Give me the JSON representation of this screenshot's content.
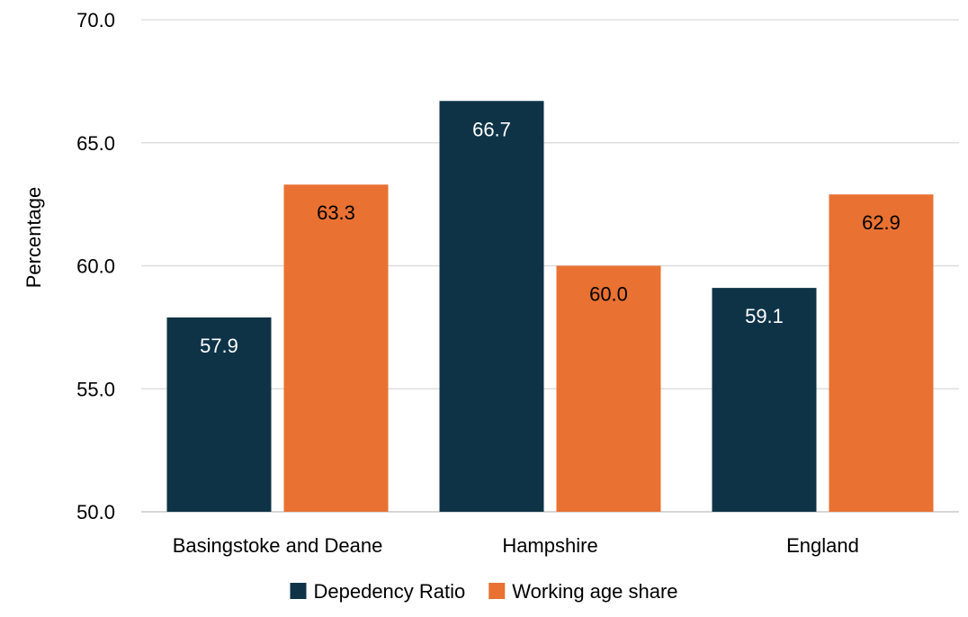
{
  "chart_data": {
    "type": "bar",
    "title": "",
    "xlabel": "",
    "ylabel": "Percentage",
    "ylim": [
      50.0,
      70.0
    ],
    "yticks": [
      50.0,
      55.0,
      60.0,
      65.0,
      70.0
    ],
    "tick_decimals": 1,
    "grid": "horizontal",
    "legend_position": "bottom",
    "categories": [
      "Basingstoke and Deane",
      "Hampshire",
      "England"
    ],
    "series": [
      {
        "name": "Depedency Ratio",
        "color": "#0e3347",
        "label_color": "#ffffff",
        "values": [
          57.9,
          66.7,
          59.1
        ]
      },
      {
        "name": "Working age share",
        "color": "#e97132",
        "label_color": "#000000",
        "values": [
          63.3,
          60.0,
          62.9
        ]
      }
    ]
  }
}
